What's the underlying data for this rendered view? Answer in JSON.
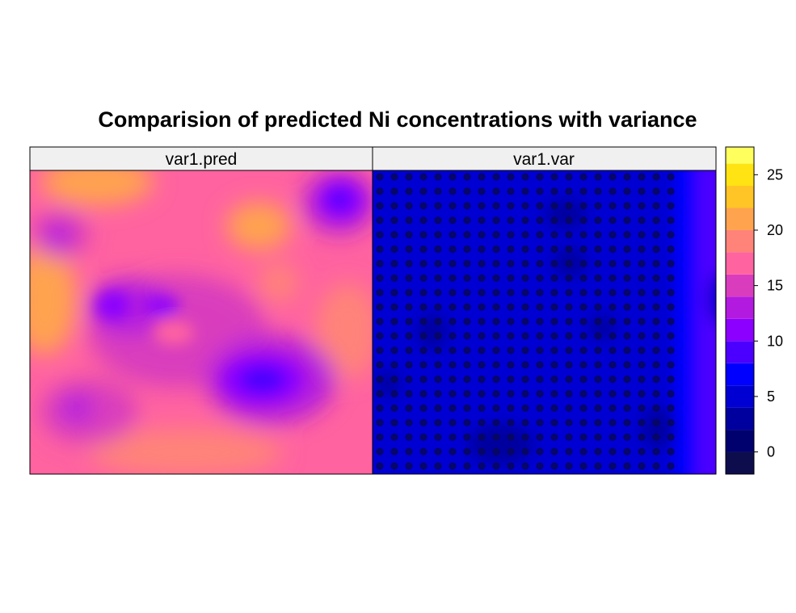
{
  "chart_data": {
    "type": "heatmap",
    "title": "Comparision of predicted Ni concentrations with variance",
    "panels": [
      {
        "name": "var1.pred"
      },
      {
        "name": "var1.var"
      }
    ],
    "colorkey": {
      "ticks": [
        "0",
        "5",
        "10",
        "15",
        "20",
        "25"
      ],
      "tick_values": [
        0,
        5,
        10,
        15,
        20,
        25
      ],
      "range": [
        -2,
        27.5
      ],
      "bin_edges": [
        -2,
        0,
        2,
        4,
        6,
        8,
        10,
        12,
        14,
        16,
        18,
        20,
        22,
        24,
        26,
        27.5
      ],
      "colors": [
        "#0d0d4d",
        "#00006f",
        "#00009f",
        "#0000d2",
        "#0000ff",
        "#4b00ff",
        "#8b00ff",
        "#b31adf",
        "#d93dbd",
        "#ff63a0",
        "#ff8379",
        "#ffa34f",
        "#ffc425",
        "#ffe313",
        "#ffff5e"
      ]
    },
    "sample_points_on": "var1.var"
  }
}
